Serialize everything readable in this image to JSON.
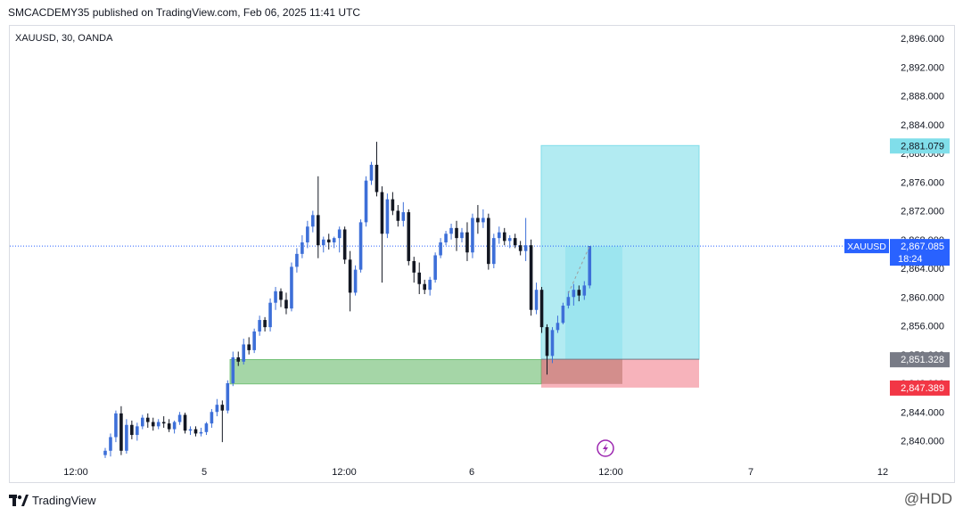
{
  "header": {
    "publish_line": "SMCACDEMY35 published on TradingView.com, Feb 06, 2025 11:41 UTC"
  },
  "symbol_info": "XAUUSD, 30, OANDA",
  "footer": {
    "brand": "TradingView",
    "watermark": "@HDD"
  },
  "chart_data": {
    "type": "candlestick",
    "title": "XAUUSD, 30, OANDA",
    "x_ticks": [
      "12:00",
      "5",
      "12:00",
      "6",
      "12:00",
      "7",
      "12"
    ],
    "y_ticks": [
      "2,896.000",
      "2,892.000",
      "2,888.000",
      "2,884.000",
      "2,880.000",
      "2,876.000",
      "2,872.000",
      "2,868.000",
      "2,864.000",
      "2,860.000",
      "2,856.000",
      "2,852.000",
      "2,848.000",
      "2,844.000",
      "2,840.000"
    ],
    "ylim": [
      2837,
      2898
    ],
    "current_price": {
      "symbol": "XAUUSD",
      "value": "2,867.085",
      "countdown": "18:24"
    },
    "price_labels": [
      {
        "value": "2,881.079",
        "color": "#80deea",
        "text_color": "#131722"
      },
      {
        "value": "2,851.328",
        "color": "#787b86",
        "text_color": "#ffffff"
      },
      {
        "value": "2,847.389",
        "color": "#f23645",
        "text_color": "#ffffff"
      }
    ],
    "long_position": {
      "entry": 2851.328,
      "target": 2881.079,
      "stop": 2847.389,
      "profit_color": "#b2ebf2",
      "loss_color": "#f7b3bb"
    },
    "demand_zone": {
      "top": 2851.3,
      "bottom": 2847.9,
      "color": "#a5d6a7"
    },
    "colors": {
      "up": "#3d6fd8",
      "down": "#131722",
      "text": "#131722"
    },
    "candles": [
      [
        2838.0,
        2839.0,
        2837.6,
        2838.6
      ],
      [
        2838.6,
        2841.0,
        2837.8,
        2840.5
      ],
      [
        2840.5,
        2844.2,
        2839.8,
        2843.8
      ],
      [
        2843.8,
        2844.8,
        2838.0,
        2838.6
      ],
      [
        2838.6,
        2843.0,
        2838.2,
        2842.2
      ],
      [
        2842.2,
        2842.8,
        2840.2,
        2840.8
      ],
      [
        2840.8,
        2842.5,
        2840.0,
        2842.0
      ],
      [
        2842.0,
        2843.6,
        2841.6,
        2843.2
      ],
      [
        2843.2,
        2843.8,
        2841.8,
        2842.6
      ],
      [
        2842.6,
        2843.2,
        2841.4,
        2842.0
      ],
      [
        2842.0,
        2843.0,
        2841.6,
        2842.6
      ],
      [
        2842.6,
        2843.4,
        2841.8,
        2842.4
      ],
      [
        2842.4,
        2843.0,
        2841.2,
        2841.6
      ],
      [
        2841.6,
        2842.8,
        2841.0,
        2842.6
      ],
      [
        2842.6,
        2844.0,
        2842.2,
        2843.6
      ],
      [
        2843.6,
        2843.9,
        2841.0,
        2841.4
      ],
      [
        2841.4,
        2842.0,
        2840.8,
        2841.6
      ],
      [
        2841.6,
        2842.0,
        2840.6,
        2841.0
      ],
      [
        2841.0,
        2841.8,
        2840.6,
        2841.2
      ],
      [
        2841.2,
        2842.6,
        2840.8,
        2842.4
      ],
      [
        2842.4,
        2844.4,
        2841.8,
        2844.0
      ],
      [
        2844.0,
        2845.8,
        2843.4,
        2845.0
      ],
      [
        2845.0,
        2845.6,
        2839.8,
        2844.2
      ],
      [
        2844.2,
        2848.4,
        2843.8,
        2848.0
      ],
      [
        2848.0,
        2852.4,
        2847.6,
        2851.6
      ],
      [
        2851.6,
        2852.4,
        2850.4,
        2851.0
      ],
      [
        2851.0,
        2854.2,
        2850.6,
        2853.4
      ],
      [
        2853.4,
        2854.4,
        2852.0,
        2852.6
      ],
      [
        2852.6,
        2855.6,
        2852.2,
        2855.2
      ],
      [
        2855.2,
        2857.4,
        2854.6,
        2856.8
      ],
      [
        2856.8,
        2857.2,
        2855.2,
        2855.8
      ],
      [
        2855.8,
        2859.8,
        2855.2,
        2859.2
      ],
      [
        2859.2,
        2861.4,
        2858.2,
        2860.8
      ],
      [
        2860.8,
        2861.2,
        2858.6,
        2859.6
      ],
      [
        2859.6,
        2860.6,
        2857.6,
        2858.4
      ],
      [
        2858.4,
        2864.8,
        2858.0,
        2864.2
      ],
      [
        2864.2,
        2866.8,
        2863.4,
        2866.0
      ],
      [
        2866.0,
        2868.6,
        2865.4,
        2867.6
      ],
      [
        2867.6,
        2870.6,
        2866.8,
        2869.8
      ],
      [
        2869.8,
        2872.0,
        2869.0,
        2871.4
      ],
      [
        2871.4,
        2876.8,
        2865.4,
        2867.2
      ],
      [
        2867.2,
        2868.4,
        2866.2,
        2868.0
      ],
      [
        2868.0,
        2868.8,
        2866.6,
        2867.6
      ],
      [
        2867.6,
        2868.4,
        2866.8,
        2868.2
      ],
      [
        2868.2,
        2869.8,
        2866.2,
        2869.4
      ],
      [
        2869.4,
        2869.8,
        2864.6,
        2865.2
      ],
      [
        2865.2,
        2866.4,
        2858.0,
        2860.6
      ],
      [
        2860.6,
        2864.4,
        2860.2,
        2863.8
      ],
      [
        2863.8,
        2870.8,
        2863.4,
        2870.4
      ],
      [
        2870.4,
        2876.8,
        2869.8,
        2876.2
      ],
      [
        2876.2,
        2878.8,
        2875.6,
        2878.4
      ],
      [
        2878.4,
        2881.6,
        2874.0,
        2874.6
      ],
      [
        2874.6,
        2875.4,
        2862.0,
        2868.8
      ],
      [
        2868.8,
        2874.4,
        2868.2,
        2873.6
      ],
      [
        2873.6,
        2874.6,
        2871.4,
        2872.0
      ],
      [
        2872.0,
        2872.8,
        2869.8,
        2870.6
      ],
      [
        2870.6,
        2873.2,
        2869.8,
        2871.8
      ],
      [
        2871.8,
        2872.2,
        2864.4,
        2865.0
      ],
      [
        2865.0,
        2865.6,
        2862.0,
        2863.4
      ],
      [
        2863.4,
        2864.8,
        2860.4,
        2861.8
      ],
      [
        2861.8,
        2862.4,
        2860.4,
        2861.0
      ],
      [
        2861.0,
        2862.8,
        2860.2,
        2862.4
      ],
      [
        2862.4,
        2866.2,
        2862.0,
        2865.8
      ],
      [
        2865.8,
        2868.2,
        2865.4,
        2867.6
      ],
      [
        2867.6,
        2869.2,
        2867.2,
        2868.8
      ],
      [
        2868.8,
        2870.2,
        2868.0,
        2869.6
      ],
      [
        2869.6,
        2870.6,
        2866.4,
        2868.2
      ],
      [
        2868.2,
        2869.6,
        2867.6,
        2869.0
      ],
      [
        2869.0,
        2870.4,
        2865.0,
        2866.2
      ],
      [
        2866.2,
        2871.6,
        2865.4,
        2871.0
      ],
      [
        2871.0,
        2872.8,
        2868.8,
        2870.4
      ],
      [
        2870.4,
        2872.2,
        2869.6,
        2871.0
      ],
      [
        2871.0,
        2871.6,
        2863.8,
        2864.6
      ],
      [
        2864.6,
        2868.8,
        2864.0,
        2868.2
      ],
      [
        2868.2,
        2869.8,
        2867.4,
        2869.0
      ],
      [
        2869.0,
        2869.6,
        2867.2,
        2867.8
      ],
      [
        2867.8,
        2868.6,
        2866.8,
        2868.2
      ],
      [
        2868.2,
        2868.8,
        2866.8,
        2867.2
      ],
      [
        2867.2,
        2867.8,
        2865.8,
        2866.4
      ],
      [
        2866.4,
        2871.0,
        2865.0,
        2867.2
      ],
      [
        2867.2,
        2868.0,
        2857.4,
        2858.2
      ],
      [
        2858.2,
        2862.0,
        2857.6,
        2861.0
      ],
      [
        2861.0,
        2861.4,
        2855.0,
        2855.8
      ],
      [
        2855.8,
        2856.2,
        2849.2,
        2851.8
      ],
      [
        2851.8,
        2855.8,
        2850.8,
        2855.4
      ],
      [
        2855.4,
        2857.4,
        2855.0,
        2856.4
      ],
      [
        2856.4,
        2859.2,
        2856.2,
        2858.8
      ],
      [
        2858.8,
        2860.8,
        2858.4,
        2860.0
      ],
      [
        2860.0,
        2861.8,
        2858.8,
        2861.0
      ],
      [
        2861.0,
        2861.6,
        2859.4,
        2860.2
      ],
      [
        2860.2,
        2862.2,
        2859.6,
        2861.6
      ],
      [
        2861.6,
        2867.1,
        2861.2,
        2867.1
      ]
    ]
  }
}
